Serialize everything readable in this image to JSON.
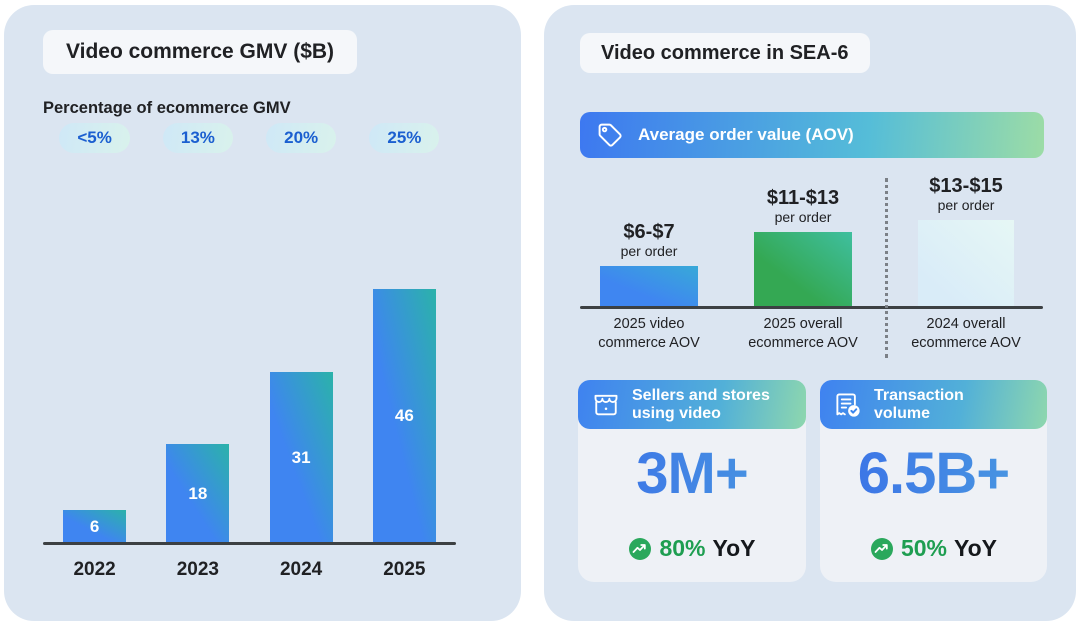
{
  "left_panel": {
    "title": "Video commerce GMV ($B)",
    "subtitle": "Percentage of ecommerce GMV",
    "badges": [
      "<5%",
      "13%",
      "20%",
      "25%"
    ]
  },
  "right_panel": {
    "title": "Video commerce in SEA-6",
    "aov_banner_label": "Average order value (AOV)",
    "aov_bars": [
      {
        "range": "$6-$7",
        "unit": "per order",
        "label_line1": "2025 video",
        "label_line2": "commerce AOV"
      },
      {
        "range": "$11-$13",
        "unit": "per order",
        "label_line1": "2025 overall",
        "label_line2": "ecommerce AOV"
      },
      {
        "range": "$13-$15",
        "unit": "per order",
        "label_line1": "2024 overall",
        "label_line2": "ecommerce AOV"
      }
    ],
    "cards": [
      {
        "icon": "storefront-icon",
        "header_line1": "Sellers and stores",
        "header_line2": "using video",
        "value": "3M+",
        "yoy_pct": "80%",
        "yoy_suffix": "YoY"
      },
      {
        "icon": "transaction-check-icon",
        "header_line1": "Transaction",
        "header_line2": "volume",
        "value": "6.5B+",
        "yoy_pct": "50%",
        "yoy_suffix": "YoY"
      }
    ]
  },
  "chart_data": [
    {
      "type": "bar",
      "title": "Video commerce GMV ($B)",
      "categories": [
        "2022",
        "2023",
        "2024",
        "2025"
      ],
      "values": [
        6,
        18,
        31,
        46
      ],
      "value_unit": "$B",
      "pct_of_ecommerce_gmv": [
        "<5%",
        "13%",
        "20%",
        "25%"
      ],
      "ylim": [
        0,
        46
      ],
      "grid": "off",
      "bar_label_position": "inside-center",
      "bar_label_color": "#ffffff"
    },
    {
      "type": "bar",
      "title": "Average order value (AOV)",
      "categories": [
        "2025 video commerce AOV",
        "2025 overall ecommerce AOV",
        "2024 overall ecommerce AOV"
      ],
      "value_ranges": [
        "$6-$7",
        "$11-$13",
        "$13-$15"
      ],
      "values_usd_mid": [
        6.5,
        12,
        14
      ],
      "unit": "per order",
      "grid": "off",
      "note": "third bar rendered in muted pale style, separated from first two by a dotted vertical divider"
    }
  ],
  "colors": {
    "page_bg": "#ffffff",
    "panel_bg": "#dbe5f1",
    "title_box_bg": "#f5f7fa",
    "text_dark": "#202124",
    "badge_text_blue": "#1b5fd0",
    "gmv_bar_gradient": [
      "#3f85f1",
      "#2bb2aa"
    ],
    "aov_bar_video_gradient": [
      "#3f86f1",
      "#38a9d8"
    ],
    "aov_bar_overall_gradient": [
      "#34a853",
      "#3fbf9f"
    ],
    "aov_bar_muted_gradient": [
      "#d9ecf8",
      "#e6f7f5"
    ],
    "banner_gradient": [
      "#3d78f0",
      "#55bdd8",
      "#9cdca6"
    ],
    "stat_value_blue": "#3d7ff0",
    "yoy_green": "#1e9e51",
    "axis_color": "#3c4043"
  }
}
